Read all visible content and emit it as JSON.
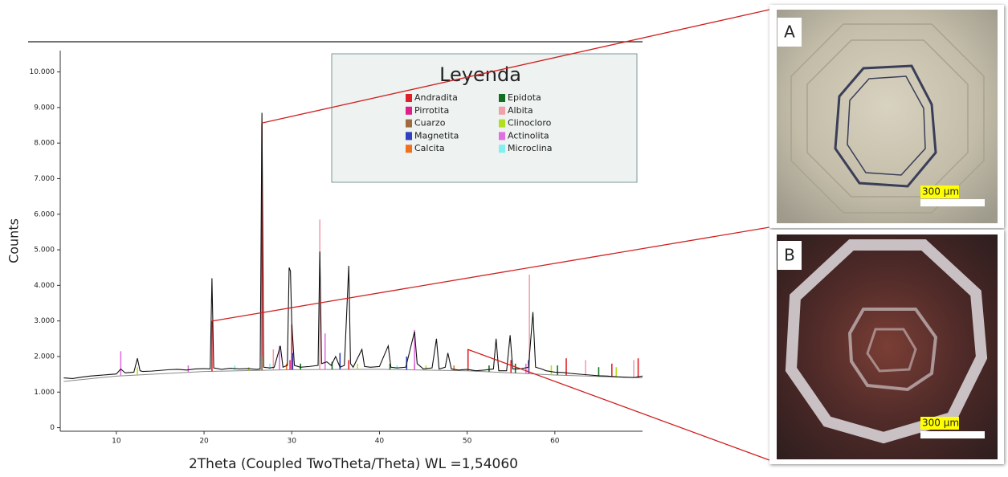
{
  "chart_data": {
    "type": "line",
    "ylabel": "Counts",
    "xlabel": "2Theta (Coupled TwoTheta/Theta) WL =1,54060",
    "xlim": [
      3.6,
      70
    ],
    "ylim": [
      -100,
      10600
    ],
    "xticks": [
      10,
      20,
      30,
      40,
      50,
      60
    ],
    "yticks": [
      0,
      {
        "value": 1000,
        "label": "1.000"
      },
      {
        "value": 2000,
        "label": "2.000"
      },
      {
        "value": 3000,
        "label": "3.000"
      },
      {
        "value": 4000,
        "label": "4.000"
      },
      {
        "value": 5000,
        "label": "5.000"
      },
      {
        "value": 6000,
        "label": "6.000"
      },
      {
        "value": 7000,
        "label": "7.000"
      },
      {
        "value": 8000,
        "label": "8.000"
      },
      {
        "value": 9000,
        "label": "9.000"
      },
      {
        "value": 10000,
        "label": "10.000"
      }
    ],
    "x": [
      4,
      5,
      6,
      7,
      8,
      9,
      10,
      10.5,
      11,
      12,
      12.4,
      12.7,
      13,
      14,
      15,
      16,
      17,
      18,
      19,
      20,
      20.7,
      20.9,
      21.1,
      22,
      23,
      24,
      25,
      26,
      26.4,
      26.6,
      26.8,
      27.5,
      28,
      28.7,
      29,
      29.5,
      29.7,
      29.85,
      30,
      30.3,
      31,
      32,
      33,
      33.2,
      33.4,
      34,
      34.5,
      35,
      35.5,
      36,
      36.5,
      36.7,
      37,
      38,
      38.3,
      39,
      40,
      41,
      41.3,
      42,
      43,
      44,
      44.3,
      45,
      46,
      46.5,
      46.8,
      47.5,
      47.8,
      48.2,
      49,
      50,
      51,
      52,
      53,
      53.3,
      53.6,
      54.5,
      54.9,
      55.2,
      56,
      57,
      57.5,
      57.8,
      58.5,
      59,
      60,
      61,
      62,
      63,
      64,
      65,
      66,
      67,
      68,
      69,
      70
    ],
    "series": [
      {
        "color": "#111111",
        "values": [
          1400,
          1380,
          1420,
          1450,
          1470,
          1490,
          1510,
          1650,
          1540,
          1560,
          1950,
          1600,
          1580,
          1590,
          1610,
          1630,
          1640,
          1620,
          1650,
          1660,
          1650,
          4200,
          1680,
          1640,
          1670,
          1650,
          1660,
          1640,
          1650,
          8850,
          1700,
          1680,
          1700,
          2300,
          1700,
          1750,
          4500,
          4400,
          2950,
          1750,
          1700,
          1720,
          1750,
          4950,
          1800,
          1850,
          1750,
          2000,
          1700,
          1750,
          4550,
          1800,
          1700,
          2200,
          1720,
          1700,
          1720,
          2300,
          1700,
          1680,
          1700,
          2700,
          1800,
          1650,
          1680,
          2500,
          1650,
          1700,
          2100,
          1650,
          1620,
          1640,
          1600,
          1620,
          1650,
          2500,
          1600,
          1600,
          2600,
          1650,
          1650,
          1700,
          3250,
          1700,
          1650,
          1600,
          1560,
          1550,
          1520,
          1500,
          1480,
          1460,
          1450,
          1430,
          1420,
          1410,
          1450
        ]
      }
    ],
    "background": {
      "color": "#888888",
      "x": [
        4,
        10,
        20,
        30,
        40,
        50,
        60,
        70
      ],
      "values": [
        1300,
        1450,
        1580,
        1630,
        1640,
        1600,
        1480,
        1400
      ]
    },
    "legend_title": "Leyenda",
    "phases": [
      {
        "name": "Andradita",
        "color": "#e02028",
        "x": [
          20.9,
          26.6,
          30.0,
          33.2,
          36.5,
          50.1,
          55.0,
          61.3,
          66.5,
          69.5
        ],
        "values": [
          3000,
          8550,
          2900,
          1900,
          1900,
          2200,
          1900,
          1950,
          1800,
          1950
        ]
      },
      {
        "name": "Pirrotita",
        "color": "#e0208a",
        "x": [
          29.8,
          44.0
        ],
        "values": [
          1900,
          1800
        ]
      },
      {
        "name": "Cuarzo",
        "color": "#a06a40",
        "x": [
          26.6,
          50.1
        ],
        "values": [
          2000,
          1700
        ]
      },
      {
        "name": "Magnetita",
        "color": "#3040c0",
        "x": [
          30.1,
          35.5,
          43.1,
          57.0
        ],
        "values": [
          2100,
          2100,
          2000,
          1900
        ]
      },
      {
        "name": "Calcita",
        "color": "#f07020",
        "x": [
          29.4,
          48.5
        ],
        "values": [
          1800,
          1750
        ]
      },
      {
        "name": "Epidota",
        "color": "#107020",
        "x": [
          31.0,
          34.6,
          41.2,
          52.5,
          55.5,
          60.3,
          65.0
        ],
        "values": [
          1800,
          1850,
          1800,
          1750,
          1800,
          1750,
          1700
        ]
      },
      {
        "name": "Albita",
        "color": "#f0a0a8",
        "x": [
          27.9,
          33.2,
          57.1,
          63.5,
          69.0
        ],
        "values": [
          2200,
          5850,
          4300,
          1900,
          1900
        ]
      },
      {
        "name": "Clinocloro",
        "color": "#b0e020",
        "x": [
          12.4,
          25.1,
          37.5,
          45.3,
          59.6,
          67.0
        ],
        "values": [
          1700,
          1700,
          1800,
          1750,
          1750,
          1700
        ]
      },
      {
        "name": "Actinolita",
        "color": "#e070e0",
        "x": [
          10.5,
          18.2,
          28.6,
          33.8,
          44.0,
          56.7
        ],
        "values": [
          2150,
          1750,
          2300,
          2650,
          2750,
          1800
        ]
      },
      {
        "name": "Microclina",
        "color": "#80f0f0",
        "x": [
          23.5,
          27.5,
          42.0
        ],
        "values": [
          1750,
          1800,
          1750
        ]
      }
    ]
  },
  "panels": [
    {
      "label": "A",
      "scale": "300 µm"
    },
    {
      "label": "B",
      "scale": "300 µm"
    }
  ]
}
